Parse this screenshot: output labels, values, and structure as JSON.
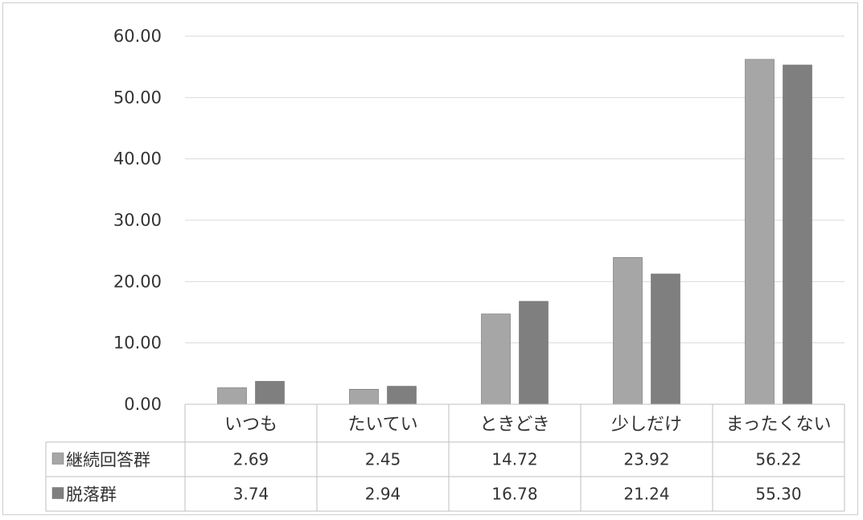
{
  "chart_data": {
    "type": "bar",
    "categories": [
      "いつも",
      "たいてい",
      "ときどき",
      "少しだけ",
      "まったくない"
    ],
    "series": [
      {
        "name": "継続回答群",
        "values": [
          2.69,
          2.45,
          14.72,
          23.92,
          56.22
        ],
        "display": [
          "2.69",
          "2.45",
          "14.72",
          "23.92",
          "56.22"
        ],
        "color": "#a6a6a6"
      },
      {
        "name": "脱落群",
        "values": [
          3.74,
          2.94,
          16.78,
          21.24,
          55.3
        ],
        "display": [
          "3.74",
          "2.94",
          "16.78",
          "21.24",
          "55.30"
        ],
        "color": "#7f7f7f"
      }
    ],
    "y_ticks": [
      "0.00",
      "10.00",
      "20.00",
      "30.00",
      "40.00",
      "50.00",
      "60.00"
    ],
    "ylim": [
      0,
      60
    ],
    "grid": true,
    "legend": "data-table",
    "data_table": true
  }
}
